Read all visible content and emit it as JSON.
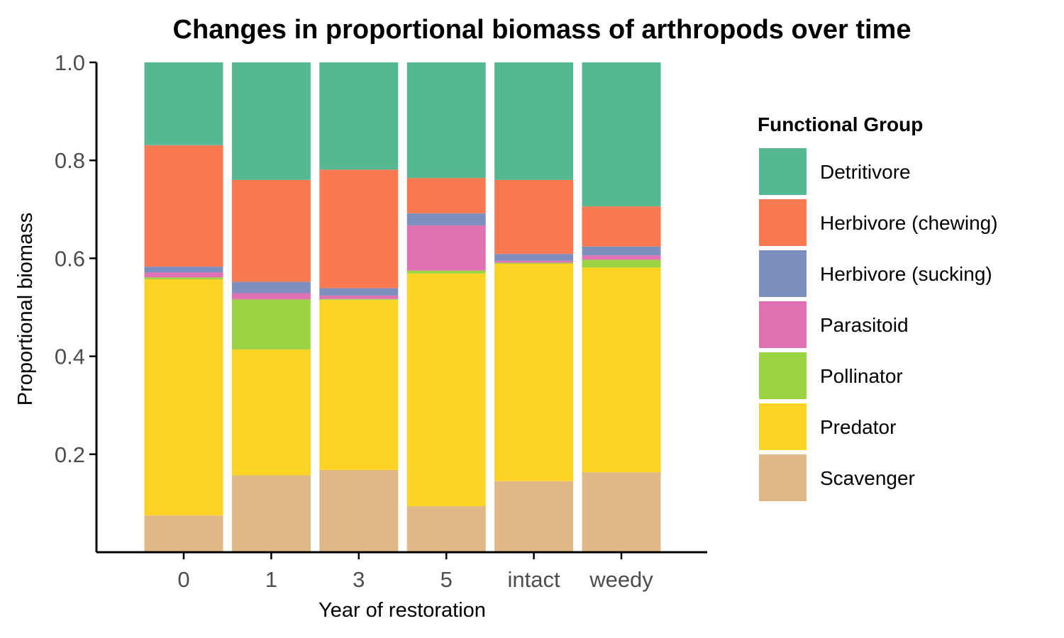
{
  "chart_data": {
    "type": "bar",
    "stacked": true,
    "title": "Changes in proportional biomass of arthropods over time",
    "xlabel": "Year of restoration",
    "ylabel": "Proportional biomass",
    "ylim": [
      0,
      1
    ],
    "yticks": [
      "0.2",
      "0.4",
      "0.6",
      "0.8",
      "1.0"
    ],
    "ytick_values": [
      0.2,
      0.4,
      0.6,
      0.8,
      1.0
    ],
    "categories": [
      "0",
      "1",
      "3",
      "5",
      "intact",
      "weedy"
    ],
    "legend": {
      "title": "Functional Group",
      "placement": "right"
    },
    "grid": false,
    "series": [
      {
        "name": "Scavenger",
        "color": "#DEB887",
        "values": [
          0.075,
          0.157,
          0.168,
          0.094,
          0.145,
          0.163
        ]
      },
      {
        "name": "Predator",
        "color": "#FDD324",
        "values": [
          0.482,
          0.257,
          0.347,
          0.475,
          0.444,
          0.418
        ]
      },
      {
        "name": "Pollinator",
        "color": "#9AD443",
        "values": [
          0.004,
          0.102,
          0.002,
          0.006,
          0.002,
          0.016
        ]
      },
      {
        "name": "Parasitoid",
        "color": "#E072B4",
        "values": [
          0.01,
          0.013,
          0.007,
          0.092,
          0.004,
          0.009
        ]
      },
      {
        "name": "Herbivore (sucking)",
        "color": "#7E8FBF",
        "values": [
          0.012,
          0.023,
          0.015,
          0.025,
          0.014,
          0.018
        ]
      },
      {
        "name": "Herbivore (chewing)",
        "color": "#F97A52",
        "values": [
          0.248,
          0.208,
          0.242,
          0.072,
          0.151,
          0.082
        ]
      },
      {
        "name": "Detritivore",
        "color": "#56B893",
        "values": [
          0.169,
          0.24,
          0.219,
          0.236,
          0.24,
          0.294
        ]
      }
    ],
    "legend_order": [
      "Detritivore",
      "Herbivore (chewing)",
      "Herbivore (sucking)",
      "Parasitoid",
      "Pollinator",
      "Predator",
      "Scavenger"
    ]
  }
}
